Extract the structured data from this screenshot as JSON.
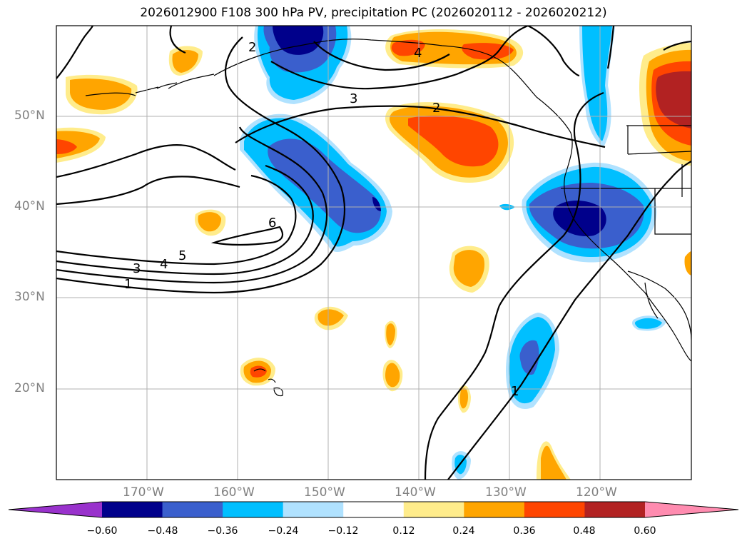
{
  "title": "2026012900 F108 300 hPa PV, precipitation PC (2026020112 - 2026020212)",
  "map": {
    "lon_labels": [
      "170°W",
      "160°W",
      "150°W",
      "140°W",
      "130°W",
      "120°W"
    ],
    "lat_labels": [
      "50°N",
      "40°N",
      "30°N",
      "20°N"
    ],
    "pv_contour_labels": [
      "1",
      "2",
      "3",
      "4",
      "5",
      "6"
    ],
    "colors": {
      "label_gray": "#808080",
      "gridline": "#b0b0b0"
    }
  },
  "colorbar": {
    "ticks": [
      "−0.60",
      "−0.48",
      "−0.36",
      "−0.24",
      "−0.12",
      "0.12",
      "0.24",
      "0.36",
      "0.48",
      "0.60"
    ],
    "colors": [
      "#9932cc",
      "#00008b",
      "#3a5fcd",
      "#00bfff",
      "#b0e2ff",
      "#ffffff",
      "#ffec8b",
      "#ffa500",
      "#ff4500",
      "#b22222",
      "#ff8cb0"
    ]
  }
}
